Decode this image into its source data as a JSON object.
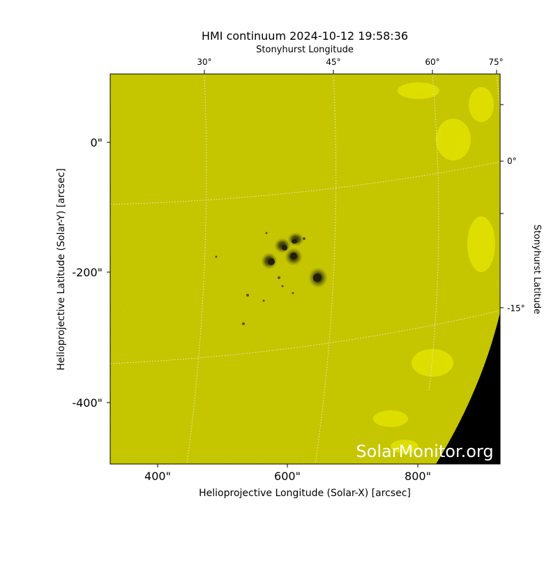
{
  "figure": {
    "title": "HMI continuum 2024-10-12 19:58:36",
    "watermark": "SolarMonitor.org",
    "xlabel": "Helioprojective Longitude (Solar-X) [arcsec]",
    "ylabel": "Helioprojective Latitude (Solar-Y) [arcsec]",
    "top_axis_label": "Stonyhurst Longitude",
    "right_axis_label": "Stonyhurst Latitude",
    "x_ticks": [
      "400\"",
      "600\"",
      "800\""
    ],
    "y_ticks": [
      "0\"",
      "-200\"",
      "-400\""
    ],
    "top_ticks": [
      "30°",
      "45°",
      "60°",
      "75°"
    ],
    "right_ticks": [
      "0°",
      "-15°"
    ],
    "colors": {
      "disk": "#c8c800",
      "bright_faculae": "#e6e600",
      "space": "#000000",
      "grid": "#e0e0c0",
      "sunspot": "#3a3a10"
    }
  }
}
